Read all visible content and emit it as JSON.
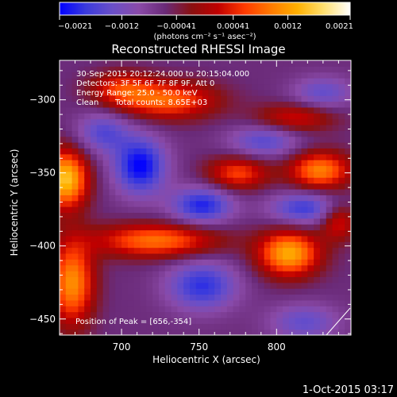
{
  "chart_data": {
    "type": "heatmap",
    "title": "Reconstructed RHESSI Image",
    "xlabel": "Heliocentric X (arcsec)",
    "ylabel": "Heliocentric Y (arcsec)",
    "xlim": [
      660,
      848
    ],
    "ylim": [
      -461,
      -273
    ],
    "x_ticks": [
      700,
      750,
      800
    ],
    "y_ticks": [
      -300,
      -350,
      -400,
      -450
    ],
    "x_tick_labels": [
      "700",
      "750",
      "800"
    ],
    "y_tick_labels": [
      "−300",
      "−350",
      "−400",
      "−450"
    ],
    "colorbar": {
      "min": -0.0021,
      "max": 0.0021,
      "tick_values": [
        -0.0021,
        -0.0012,
        -0.00041,
        0.00041,
        0.0012,
        0.0021
      ],
      "tick_labels": [
        "−0.0021",
        "−0.0012",
        "−0.00041",
        "0.00041",
        "0.0012",
        "0.0021"
      ],
      "unit_label": "(photons cm⁻² s⁻¹ asec⁻²)",
      "colormap": [
        "#0000ff",
        "#3b3bdc",
        "#6a4fc8",
        "#8a4aa8",
        "#6a2a78",
        "#8a1010",
        "#c00000",
        "#ff3a00",
        "#ff7a00",
        "#ffb000",
        "#ffe070",
        "#ffffff"
      ]
    },
    "annotations": [
      "30-Sep-2015 20:12:24.000 to 20:15:04.000",
      "Detectors: 3F 5F 6F 7F 8F 9F, Att 0",
      "Energy Range: 25.0 - 50.0 keV",
      "Clean",
      "Total counts: 8.65E+03"
    ],
    "peak_label": "Position of Peak = [656,-354]",
    "peak": [
      656,
      -354
    ],
    "sources": [
      {
        "x": 664,
        "y": -354,
        "sx": 10,
        "sy": 14,
        "amp": 0.0021
      },
      {
        "x": 730,
        "y": -300,
        "sx": 22,
        "sy": 9,
        "amp": 0.0014
      },
      {
        "x": 700,
        "y": -292,
        "sx": 14,
        "sy": 8,
        "amp": 0.001
      },
      {
        "x": 775,
        "y": -350,
        "sx": 14,
        "sy": 8,
        "amp": 0.0012
      },
      {
        "x": 828,
        "y": -348,
        "sx": 14,
        "sy": 9,
        "amp": 0.0016
      },
      {
        "x": 812,
        "y": -312,
        "sx": 18,
        "sy": 7,
        "amp": 0.0009
      },
      {
        "x": 722,
        "y": -396,
        "sx": 28,
        "sy": 8,
        "amp": 0.0015
      },
      {
        "x": 808,
        "y": -405,
        "sx": 14,
        "sy": 11,
        "amp": 0.0019
      },
      {
        "x": 668,
        "y": -425,
        "sx": 10,
        "sy": 20,
        "amp": 0.0017
      },
      {
        "x": 840,
        "y": -383,
        "sx": 8,
        "sy": 9,
        "amp": 0.001
      },
      {
        "x": 688,
        "y": -322,
        "sx": 12,
        "sy": 10,
        "amp": -0.0009
      },
      {
        "x": 712,
        "y": -345,
        "sx": 12,
        "sy": 14,
        "amp": -0.0015
      },
      {
        "x": 752,
        "y": -372,
        "sx": 14,
        "sy": 9,
        "amp": -0.0013
      },
      {
        "x": 818,
        "y": -374,
        "sx": 16,
        "sy": 8,
        "amp": -0.0011
      },
      {
        "x": 792,
        "y": -328,
        "sx": 16,
        "sy": 8,
        "amp": -0.0009
      },
      {
        "x": 752,
        "y": -427,
        "sx": 16,
        "sy": 12,
        "amp": -0.0012
      },
      {
        "x": 818,
        "y": -452,
        "sx": 16,
        "sy": 9,
        "amp": -0.0008
      },
      {
        "x": 830,
        "y": -295,
        "sx": 14,
        "sy": 8,
        "amp": -0.0008
      }
    ]
  },
  "footer": {
    "timestamp": "1-Oct-2015 03:17"
  }
}
